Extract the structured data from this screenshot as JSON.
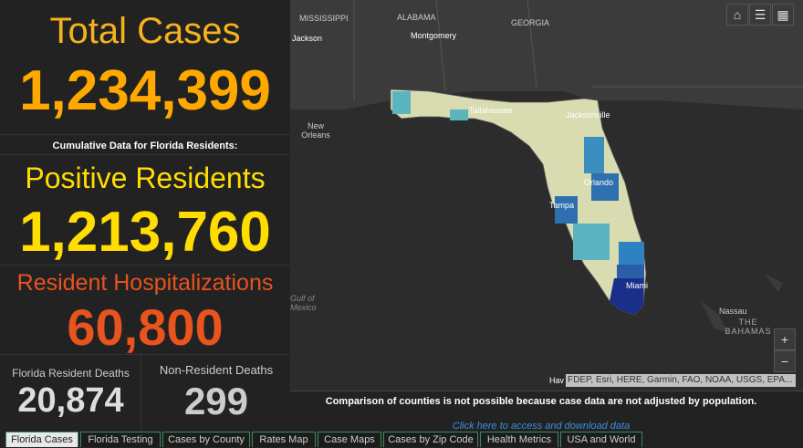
{
  "panels": {
    "total": {
      "title": "Total Cases",
      "value": "1,234,399"
    },
    "subtitle": "Cumulative Data for Florida Residents:",
    "positive": {
      "title": "Positive Residents",
      "value": "1,213,760"
    },
    "hospitalizations": {
      "title": "Resident Hospitalizations",
      "value": "60,800"
    },
    "deaths": {
      "title": "Florida Resident Deaths",
      "value": "20,874"
    },
    "non_resident_deaths": {
      "title": "Non-Resident Deaths",
      "value": "299"
    }
  },
  "map": {
    "labels": [
      "MISSISSIPPI",
      "ALABAMA",
      "GEORGIA",
      "Jackson",
      "Montgomery",
      "New Orleans",
      "Tallahassee",
      "Jacksonville",
      "Orlando",
      "Tampa",
      "Miami",
      "Gulf of Mexico",
      "Nassau",
      "THE BAHAMAS",
      "Hav"
    ],
    "attribution": "FDEP, Esri, HERE, Garmin, FAO, NOAA, USGS, EPA...",
    "zoom_in": "+",
    "zoom_out": "−"
  },
  "footer": {
    "note": "Comparison of counties is not possible because case data are not adjusted by population.",
    "link": "Click here to access and download data"
  },
  "tabs": [
    "Florida Cases",
    "Florida Testing",
    "Cases by County",
    "Rates Map",
    "Case Maps",
    "Cases by Zip Code",
    "Health Metrics",
    "USA and World"
  ]
}
